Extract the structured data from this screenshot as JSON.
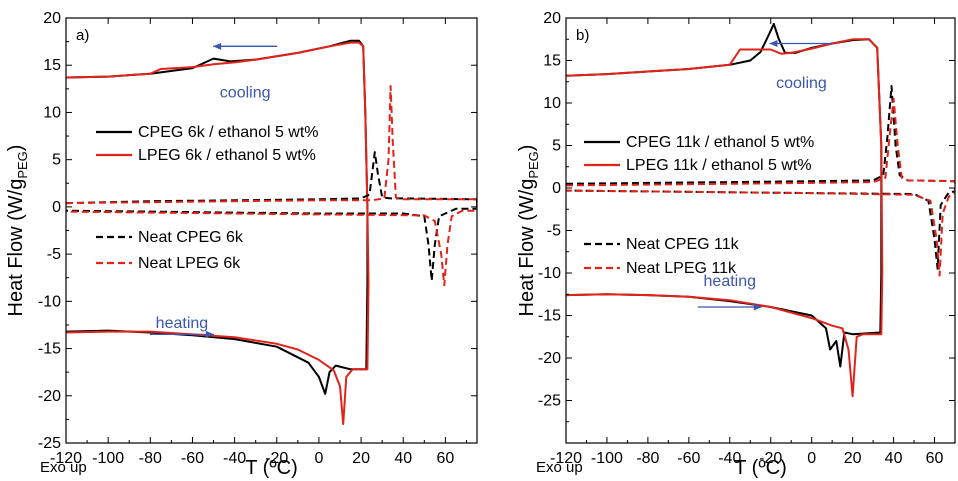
{
  "chart_data": [
    {
      "type": "line",
      "panel_label": "a)",
      "xlabel": "T (ºC)",
      "ylabel_main": "Heat Flow (W/g",
      "ylabel_sub": "PEG",
      "ylabel_close": ")",
      "corner_note": "Exo up",
      "xlim": [
        -120,
        75
      ],
      "ylim": [
        -25,
        20
      ],
      "xticks": [
        -120,
        -100,
        -80,
        -60,
        -40,
        -20,
        0,
        20,
        40,
        60
      ],
      "yticks": [
        -25,
        -20,
        -15,
        -10,
        -5,
        0,
        5,
        10,
        15,
        20
      ],
      "legend_solid": [
        "CPEG 6k / ethanol 5 wt%",
        "LPEG 6k / ethanol 5 wt%"
      ],
      "legend_dashed": [
        "Neat CPEG 6k",
        "Neat LPEG 6k"
      ],
      "annotations": [
        {
          "text": "cooling",
          "x": -35,
          "y": 12.2,
          "arrow": [
            -35,
            17
          ]
        },
        {
          "text": "heating",
          "x": -65,
          "y": -12.2,
          "arrow": [
            -65,
            -13.5
          ]
        }
      ],
      "series": [
        {
          "name": "CPEG 6k / ethanol 5 wt%",
          "color": "#000000",
          "dash": false,
          "points": [
            [
              -120,
              13.7
            ],
            [
              -100,
              13.8
            ],
            [
              -80,
              14.1
            ],
            [
              -60,
              14.7
            ],
            [
              -50,
              15.7
            ],
            [
              -42,
              15.4
            ],
            [
              -30,
              15.6
            ],
            [
              -10,
              16.3
            ],
            [
              5,
              17
            ],
            [
              15,
              17.6
            ],
            [
              19,
              17.6
            ],
            [
              21,
              17
            ],
            [
              22,
              10
            ],
            [
              23,
              0
            ],
            [
              23,
              -8
            ],
            [
              22.5,
              -17.2
            ],
            [
              15,
              -17.2
            ],
            [
              8,
              -16.8
            ],
            [
              5,
              -17.5
            ],
            [
              3,
              -19.8
            ],
            [
              0,
              -18
            ],
            [
              -5,
              -16.5
            ],
            [
              -20,
              -14.8
            ],
            [
              -40,
              -14
            ],
            [
              -60,
              -13.6
            ],
            [
              -80,
              -13.3
            ],
            [
              -100,
              -13.1
            ],
            [
              -120,
              -13.2
            ]
          ]
        },
        {
          "name": "LPEG 6k / ethanol 5 wt%",
          "color": "#e2231a",
          "dash": false,
          "points": [
            [
              -120,
              13.7
            ],
            [
              -100,
              13.8
            ],
            [
              -80,
              14.1
            ],
            [
              -75,
              14.6
            ],
            [
              -60,
              14.8
            ],
            [
              -50,
              15.1
            ],
            [
              -40,
              15.3
            ],
            [
              -30,
              15.6
            ],
            [
              -10,
              16.3
            ],
            [
              5,
              17
            ],
            [
              15,
              17.4
            ],
            [
              19,
              17.4
            ],
            [
              21,
              17
            ],
            [
              22,
              10
            ],
            [
              23,
              0
            ],
            [
              23.5,
              -8
            ],
            [
              23,
              -17.2
            ],
            [
              16,
              -17.2
            ],
            [
              13,
              -18
            ],
            [
              11.5,
              -23
            ],
            [
              10,
              -19
            ],
            [
              7,
              -17.3
            ],
            [
              0,
              -16.2
            ],
            [
              -10,
              -15.1
            ],
            [
              -20,
              -14.5
            ],
            [
              -40,
              -13.8
            ],
            [
              -60,
              -13.5
            ],
            [
              -80,
              -13.2
            ],
            [
              -100,
              -13.2
            ],
            [
              -120,
              -13.3
            ]
          ]
        },
        {
          "name": "Neat CPEG 6k",
          "color": "#000000",
          "dash": true,
          "points": [
            [
              -120,
              0.4
            ],
            [
              -80,
              0.6
            ],
            [
              -40,
              0.7
            ],
            [
              0,
              0.8
            ],
            [
              20,
              0.9
            ],
            [
              24,
              1.3
            ],
            [
              26.5,
              5.8
            ],
            [
              28,
              3.5
            ],
            [
              30,
              1
            ],
            [
              34,
              0.9
            ],
            [
              40,
              0.9
            ],
            [
              75,
              0.8
            ],
            [
              75,
              -0.2
            ],
            [
              65,
              -0.2
            ],
            [
              57,
              -1
            ],
            [
              55,
              -4
            ],
            [
              53.5,
              -7.8
            ],
            [
              52,
              -4
            ],
            [
              50,
              -1
            ],
            [
              40,
              -0.7
            ],
            [
              0,
              -0.7
            ],
            [
              -40,
              -0.6
            ],
            [
              -80,
              -0.5
            ],
            [
              -120,
              -0.4
            ]
          ]
        },
        {
          "name": "Neat LPEG 6k",
          "color": "#e2231a",
          "dash": true,
          "points": [
            [
              -120,
              0.4
            ],
            [
              -80,
              0.5
            ],
            [
              -40,
              0.6
            ],
            [
              0,
              0.7
            ],
            [
              25,
              0.7
            ],
            [
              31,
              0.9
            ],
            [
              33,
              5
            ],
            [
              34,
              12.8
            ],
            [
              35,
              7
            ],
            [
              36.5,
              1
            ],
            [
              40,
              0.8
            ],
            [
              75,
              0.8
            ],
            [
              75,
              -0.4
            ],
            [
              68,
              -0.4
            ],
            [
              63,
              -1
            ],
            [
              61,
              -4
            ],
            [
              59.5,
              -8.3
            ],
            [
              58,
              -5
            ],
            [
              55,
              -1.5
            ],
            [
              50,
              -0.9
            ],
            [
              0,
              -0.8
            ],
            [
              -40,
              -0.7
            ],
            [
              -80,
              -0.6
            ],
            [
              -120,
              -0.5
            ]
          ]
        }
      ]
    },
    {
      "type": "line",
      "panel_label": "b)",
      "xlabel": "T (ºC)",
      "ylabel_main": "Heat Flow (W/g",
      "ylabel_sub": "PEG",
      "ylabel_close": ")",
      "corner_note": "Exo up",
      "xlim": [
        -120,
        70
      ],
      "ylim": [
        -30,
        20
      ],
      "xticks": [
        -120,
        -100,
        -80,
        -60,
        -40,
        -20,
        0,
        20,
        40,
        60
      ],
      "yticks": [
        -25,
        -20,
        -15,
        -10,
        -5,
        0,
        5,
        10,
        15,
        20
      ],
      "legend_solid": [
        "CPEG 11k / ethanol 5 wt%",
        "LPEG 11k / ethanol 5 wt%"
      ],
      "legend_dashed": [
        "Neat CPEG 11k",
        "Neat LPEG 11k"
      ],
      "annotations": [
        {
          "text": "cooling",
          "x": -5,
          "y": 12.5,
          "arrow": [
            -5,
            17
          ]
        },
        {
          "text": "heating",
          "x": -40,
          "y": -10.8,
          "arrow": [
            -40,
            -14
          ]
        }
      ],
      "series": [
        {
          "name": "CPEG 11k / ethanol 5 wt%",
          "color": "#000000",
          "dash": false,
          "points": [
            [
              -120,
              13.2
            ],
            [
              -100,
              13.4
            ],
            [
              -80,
              13.7
            ],
            [
              -60,
              14
            ],
            [
              -40,
              14.5
            ],
            [
              -30,
              15
            ],
            [
              -25,
              16
            ],
            [
              -21,
              18
            ],
            [
              -18.5,
              19.3
            ],
            [
              -16,
              17.5
            ],
            [
              -13,
              15.9
            ],
            [
              -8,
              15.9
            ],
            [
              0,
              16.5
            ],
            [
              10,
              17
            ],
            [
              20,
              17.4
            ],
            [
              28,
              17.5
            ],
            [
              32,
              16.5
            ],
            [
              34,
              5
            ],
            [
              34,
              -10
            ],
            [
              33.5,
              -17
            ],
            [
              20,
              -17.2
            ],
            [
              16,
              -17
            ],
            [
              14,
              -21
            ],
            [
              12,
              -18
            ],
            [
              9,
              -19
            ],
            [
              7,
              -16.5
            ],
            [
              0,
              -15
            ],
            [
              -20,
              -14
            ],
            [
              -40,
              -13.3
            ],
            [
              -60,
              -12.8
            ],
            [
              -80,
              -12.6
            ],
            [
              -100,
              -12.5
            ],
            [
              -120,
              -12.6
            ]
          ]
        },
        {
          "name": "LPEG 11k / ethanol 5 wt%",
          "color": "#e2231a",
          "dash": false,
          "points": [
            [
              -120,
              13.2
            ],
            [
              -100,
              13.4
            ],
            [
              -80,
              13.7
            ],
            [
              -60,
              14
            ],
            [
              -40,
              14.5
            ],
            [
              -35,
              16.3
            ],
            [
              -30,
              16.3
            ],
            [
              -20,
              16.3
            ],
            [
              -15,
              15.8
            ],
            [
              -10,
              15.9
            ],
            [
              0,
              16.4
            ],
            [
              10,
              17
            ],
            [
              20,
              17.5
            ],
            [
              28,
              17.5
            ],
            [
              32,
              16.5
            ],
            [
              34,
              5
            ],
            [
              34.5,
              -10
            ],
            [
              34,
              -17.2
            ],
            [
              25,
              -17.2
            ],
            [
              22,
              -17.5
            ],
            [
              20,
              -24.5
            ],
            [
              18,
              -19
            ],
            [
              15,
              -16.5
            ],
            [
              10,
              -16.2
            ],
            [
              0,
              -15.3
            ],
            [
              -20,
              -14
            ],
            [
              -40,
              -13.2
            ],
            [
              -60,
              -12.8
            ],
            [
              -80,
              -12.6
            ],
            [
              -100,
              -12.5
            ],
            [
              -120,
              -12.6
            ]
          ]
        },
        {
          "name": "Neat CPEG 11k",
          "color": "#000000",
          "dash": true,
          "points": [
            [
              -120,
              0.5
            ],
            [
              -80,
              0.6
            ],
            [
              -40,
              0.7
            ],
            [
              0,
              0.8
            ],
            [
              30,
              0.9
            ],
            [
              35,
              1.5
            ],
            [
              37,
              6
            ],
            [
              39,
              12
            ],
            [
              41,
              5
            ],
            [
              43,
              1.5
            ],
            [
              47,
              0.9
            ],
            [
              70,
              0.8
            ],
            [
              70,
              -0.4
            ],
            [
              67,
              -0.5
            ],
            [
              63,
              -2
            ],
            [
              61.5,
              -9.5
            ],
            [
              60,
              -6
            ],
            [
              57,
              -1.5
            ],
            [
              50,
              -0.7
            ],
            [
              0,
              -0.6
            ],
            [
              -40,
              -0.5
            ],
            [
              -80,
              -0.4
            ],
            [
              -120,
              -0.3
            ]
          ]
        },
        {
          "name": "Neat LPEG 11k",
          "color": "#e2231a",
          "dash": true,
          "points": [
            [
              -120,
              0.3
            ],
            [
              -80,
              0.4
            ],
            [
              -40,
              0.5
            ],
            [
              0,
              0.6
            ],
            [
              30,
              0.7
            ],
            [
              36,
              1.2
            ],
            [
              38,
              6
            ],
            [
              40,
              10.5
            ],
            [
              42,
              5
            ],
            [
              44,
              1.2
            ],
            [
              47,
              0.9
            ],
            [
              70,
              0.8
            ],
            [
              70,
              -0.6
            ],
            [
              67,
              -1
            ],
            [
              64,
              -3
            ],
            [
              62.5,
              -10.3
            ],
            [
              61,
              -6
            ],
            [
              58,
              -1.5
            ],
            [
              50,
              -0.8
            ],
            [
              0,
              -0.6
            ],
            [
              -40,
              -0.5
            ],
            [
              -80,
              -0.4
            ],
            [
              -120,
              -0.3
            ]
          ]
        }
      ]
    }
  ]
}
